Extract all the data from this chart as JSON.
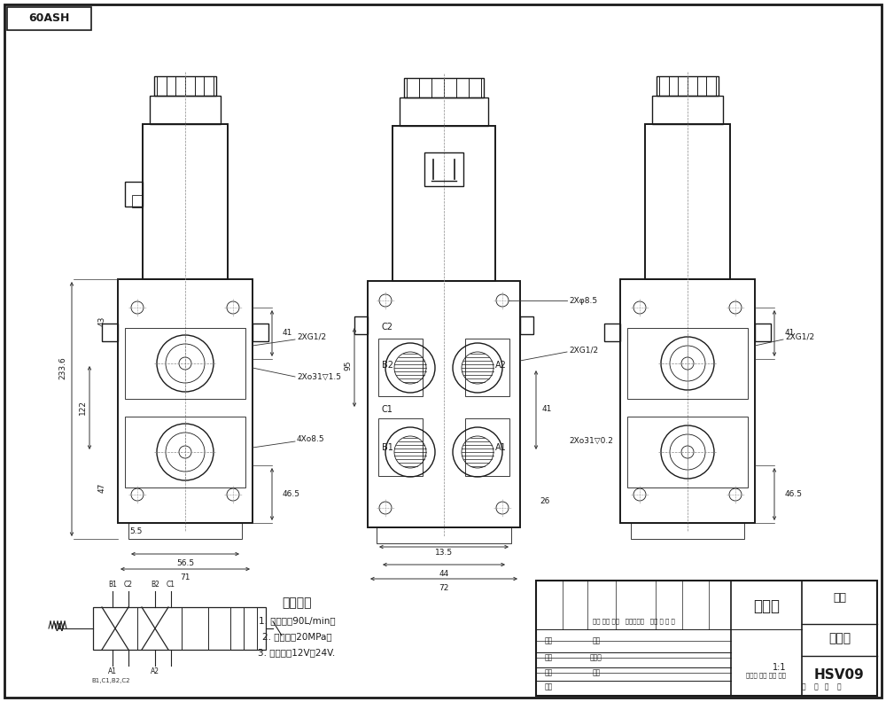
{
  "bg_color": "#ffffff",
  "line_color": "#1a1a1a",
  "title_box_text": "60ASH",
  "drawing_title": "装配图",
  "company": "林林",
  "part_name": "选流阀",
  "part_number": "HSV09",
  "scale": "1:1",
  "tech_params_title": "技术参数",
  "tech_params": [
    "1. 最大流量90L/min；",
    "2. 最大压力20MPa；",
    "3. 控制电压12V或24V."
  ],
  "figure_width": 10.0,
  "figure_height": 7.92
}
